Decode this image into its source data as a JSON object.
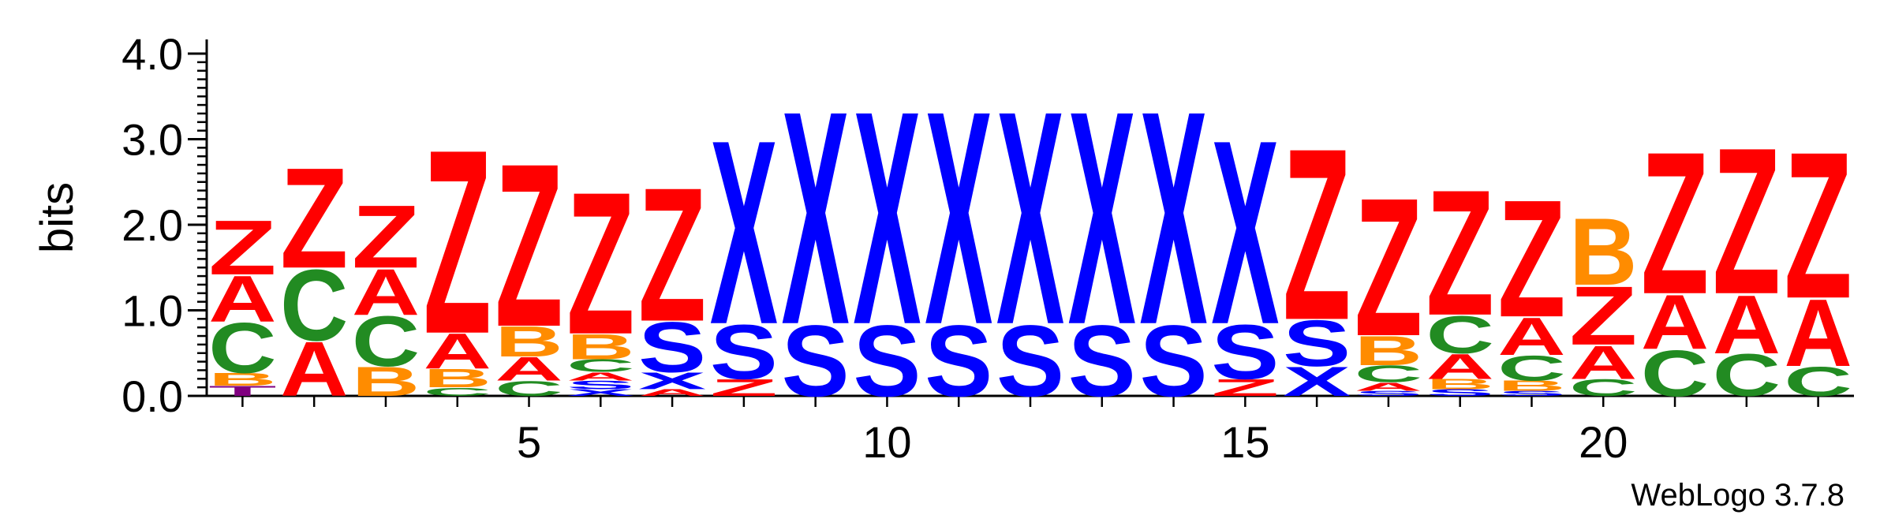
{
  "chart_data": {
    "type": "sequence-logo",
    "ylabel": "bits",
    "ylim": [
      0,
      4
    ],
    "y_ticks": [
      "0.0",
      "1.0",
      "2.0",
      "3.0",
      "4.0"
    ],
    "x_range": [
      1,
      23
    ],
    "x_ticks": [
      {
        "position": 5,
        "label": "5"
      },
      {
        "position": 10,
        "label": "10"
      },
      {
        "position": 15,
        "label": "15"
      },
      {
        "position": 20,
        "label": "20"
      }
    ],
    "colors": {
      "Z": "#ff0000",
      "A": "#ff0000",
      "C": "#228b22",
      "B": "#ff8c00",
      "S": "#0000ff",
      "X": "#0000ff",
      "T": "#800080"
    },
    "positions": [
      {
        "pos": 1,
        "stack": [
          [
            "T",
            0.12
          ],
          [
            "B",
            0.15
          ],
          [
            "C",
            0.6
          ],
          [
            "A",
            0.55
          ],
          [
            "Z",
            0.65
          ]
        ]
      },
      {
        "pos": 2,
        "stack": [
          [
            "A",
            0.65
          ],
          [
            "C",
            0.85
          ],
          [
            "Z",
            1.2
          ]
        ]
      },
      {
        "pos": 3,
        "stack": [
          [
            "B",
            0.35
          ],
          [
            "C",
            0.6
          ],
          [
            "A",
            0.55
          ],
          [
            "Z",
            0.75
          ]
        ]
      },
      {
        "pos": 4,
        "stack": [
          [
            "C",
            0.1
          ],
          [
            "B",
            0.22
          ],
          [
            "A",
            0.42
          ],
          [
            "Z",
            2.2
          ]
        ]
      },
      {
        "pos": 5,
        "stack": [
          [
            "C",
            0.18
          ],
          [
            "A",
            0.28
          ],
          [
            "B",
            0.36
          ],
          [
            "Z",
            1.95
          ]
        ]
      },
      {
        "pos": 6,
        "stack": [
          [
            "X",
            0.08
          ],
          [
            "S",
            0.1
          ],
          [
            "A",
            0.1
          ],
          [
            "C",
            0.15
          ],
          [
            "B",
            0.3
          ],
          [
            "Z",
            1.7
          ]
        ]
      },
      {
        "pos": 7,
        "stack": [
          [
            "A",
            0.08
          ],
          [
            "X",
            0.2
          ],
          [
            "S",
            0.6
          ],
          [
            "Z",
            1.6
          ]
        ]
      },
      {
        "pos": 8,
        "stack": [
          [
            "Z",
            0.2
          ],
          [
            "S",
            0.65
          ],
          [
            "X",
            2.2
          ]
        ]
      },
      {
        "pos": 9,
        "stack": [
          [
            "S",
            0.85
          ],
          [
            "X",
            2.55
          ]
        ]
      },
      {
        "pos": 10,
        "stack": [
          [
            "S",
            0.85
          ],
          [
            "X",
            2.55
          ]
        ]
      },
      {
        "pos": 11,
        "stack": [
          [
            "S",
            0.85
          ],
          [
            "X",
            2.55
          ]
        ]
      },
      {
        "pos": 12,
        "stack": [
          [
            "S",
            0.85
          ],
          [
            "X",
            2.55
          ]
        ]
      },
      {
        "pos": 13,
        "stack": [
          [
            "S",
            0.85
          ],
          [
            "X",
            2.55
          ]
        ]
      },
      {
        "pos": 14,
        "stack": [
          [
            "S",
            0.85
          ],
          [
            "X",
            2.55
          ]
        ]
      },
      {
        "pos": 15,
        "stack": [
          [
            "Z",
            0.2
          ],
          [
            "S",
            0.65
          ],
          [
            "X",
            2.2
          ]
        ]
      },
      {
        "pos": 16,
        "stack": [
          [
            "X",
            0.35
          ],
          [
            "S",
            0.55
          ],
          [
            "Z",
            2.05
          ]
        ]
      },
      {
        "pos": 17,
        "stack": [
          [
            "S",
            0.06
          ],
          [
            "A",
            0.1
          ],
          [
            "C",
            0.2
          ],
          [
            "B",
            0.35
          ],
          [
            "Z",
            1.65
          ]
        ]
      },
      {
        "pos": 18,
        "stack": [
          [
            "S",
            0.08
          ],
          [
            "B",
            0.12
          ],
          [
            "A",
            0.3
          ],
          [
            "C",
            0.45
          ],
          [
            "Z",
            1.5
          ]
        ]
      },
      {
        "pos": 19,
        "stack": [
          [
            "S",
            0.06
          ],
          [
            "B",
            0.12
          ],
          [
            "C",
            0.3
          ],
          [
            "A",
            0.45
          ],
          [
            "Z",
            1.4
          ]
        ]
      },
      {
        "pos": 20,
        "stack": [
          [
            "C",
            0.2
          ],
          [
            "A",
            0.4
          ],
          [
            "Z",
            0.7
          ],
          [
            "B",
            0.8
          ]
        ]
      },
      {
        "pos": 21,
        "stack": [
          [
            "C",
            0.55
          ],
          [
            "A",
            0.65
          ],
          [
            "Z",
            1.7
          ]
        ]
      },
      {
        "pos": 22,
        "stack": [
          [
            "C",
            0.5
          ],
          [
            "A",
            0.7
          ],
          [
            "Z",
            1.75
          ]
        ]
      },
      {
        "pos": 23,
        "stack": [
          [
            "C",
            0.35
          ],
          [
            "A",
            0.8
          ],
          [
            "Z",
            1.75
          ]
        ]
      }
    ]
  },
  "footer": {
    "text": "WebLogo 3.7.8"
  }
}
